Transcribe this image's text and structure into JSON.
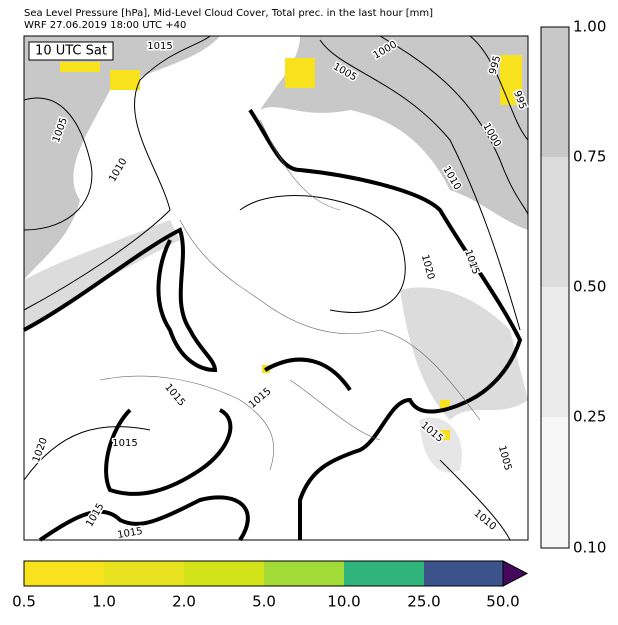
{
  "header": {
    "title": "Sea Level Pressure [hPa], Mid-Level Cloud Cover, Total prec. in the last hour [mm]",
    "subtitle": "WRF 27.06.2019 18:00 UTC +40"
  },
  "map": {
    "time_label": "10 UTC Sat",
    "isobar_labels": [
      "1015",
      "1000",
      "1005",
      "995",
      "1005",
      "1010",
      "1010",
      "1015",
      "1020",
      "1000",
      "995",
      "1015",
      "1015",
      "1015",
      "1020",
      "1015",
      "1015",
      "1015",
      "1005",
      "1010"
    ]
  },
  "cloud_colorbar": {
    "labels": [
      "1.00",
      "0.75",
      "0.50",
      "0.25",
      "0.10"
    ]
  },
  "precip_colorbar": {
    "labels": [
      "0.5",
      "1.0",
      "2.0",
      "5.0",
      "10.0",
      "25.0",
      "50.0"
    ]
  }
}
